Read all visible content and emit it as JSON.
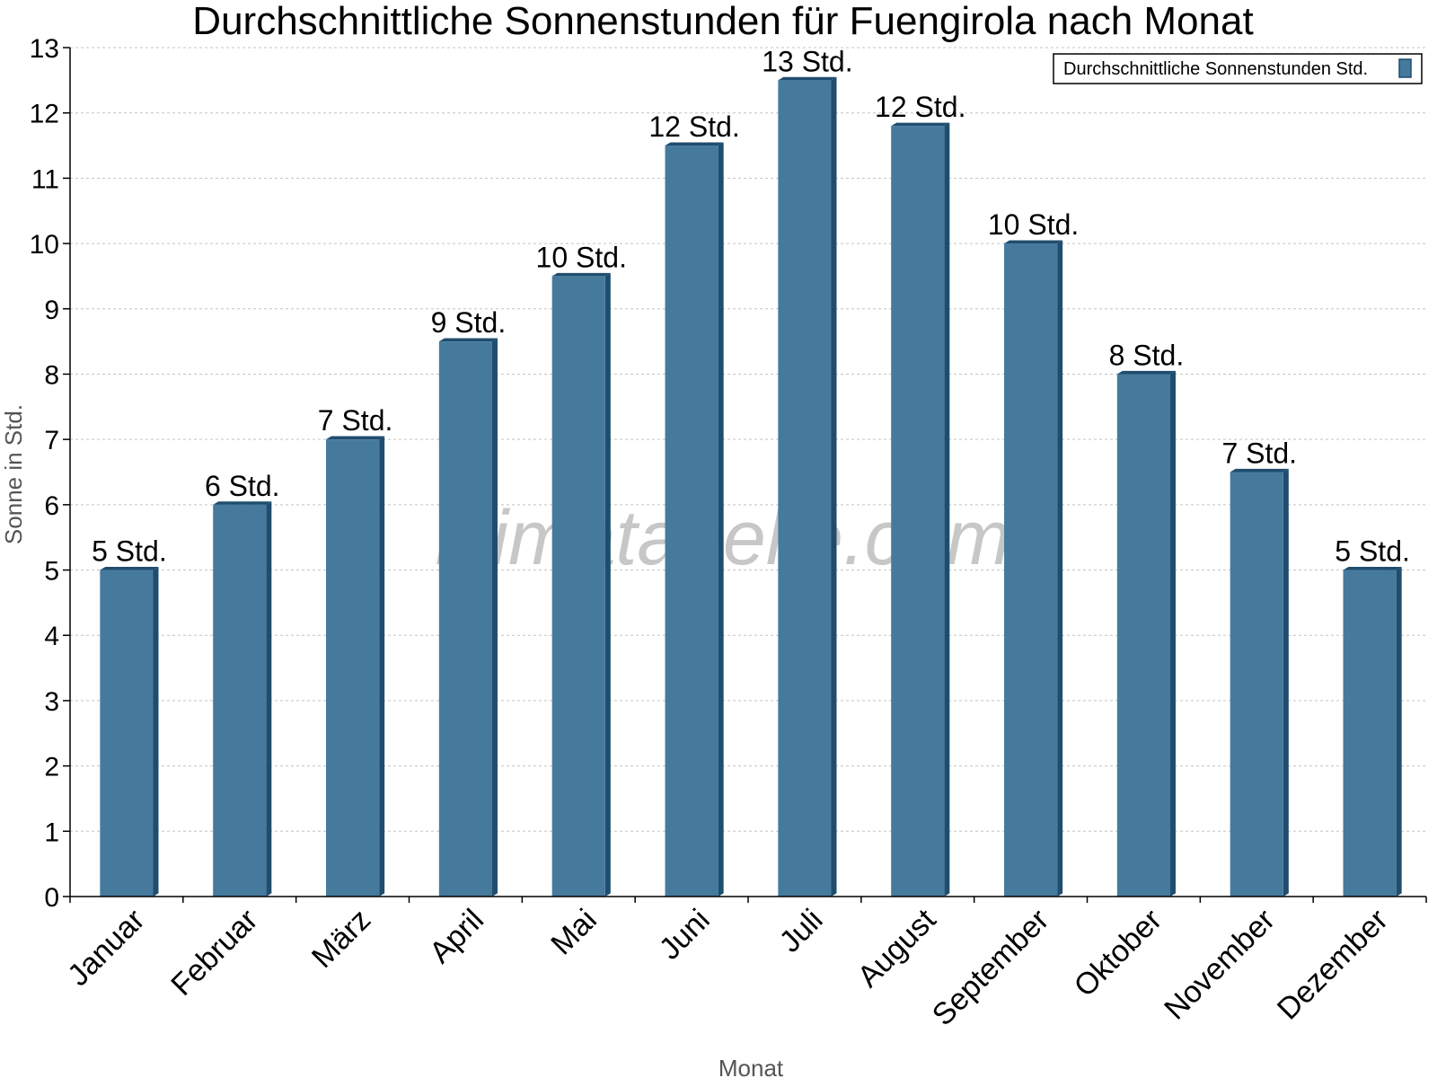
{
  "chart_data": {
    "type": "bar",
    "title": "Durchschnittliche Sonnenstunden für Fuengirola nach Monat",
    "xlabel": "Monat",
    "ylabel": "Sonne in Std.",
    "categories": [
      "Januar",
      "Februar",
      "März",
      "April",
      "Mai",
      "Juni",
      "Juli",
      "August",
      "September",
      "Oktober",
      "November",
      "Dezember"
    ],
    "series": [
      {
        "name": "Durchschnittliche Sonnenstunden Std.",
        "values": [
          5.0,
          6.0,
          7.0,
          8.5,
          9.5,
          11.5,
          12.5,
          11.8,
          10.0,
          8.0,
          6.5,
          5.0
        ],
        "labels": [
          "5 Std.",
          "6 Std.",
          "7 Std.",
          "9 Std.",
          "10 Std.",
          "12 Std.",
          "13 Std.",
          "12 Std.",
          "10 Std.",
          "8 Std.",
          "7 Std.",
          "5 Std."
        ]
      }
    ],
    "ylim": [
      0,
      13
    ],
    "yticks": [
      0,
      1,
      2,
      3,
      4,
      5,
      6,
      7,
      8,
      9,
      10,
      11,
      12,
      13
    ],
    "grid": true,
    "legend_position": "top-right",
    "bar_color": "#467a9d",
    "bar_side_color": "#1f4d6e",
    "watermark": "klimatabelle.com"
  }
}
